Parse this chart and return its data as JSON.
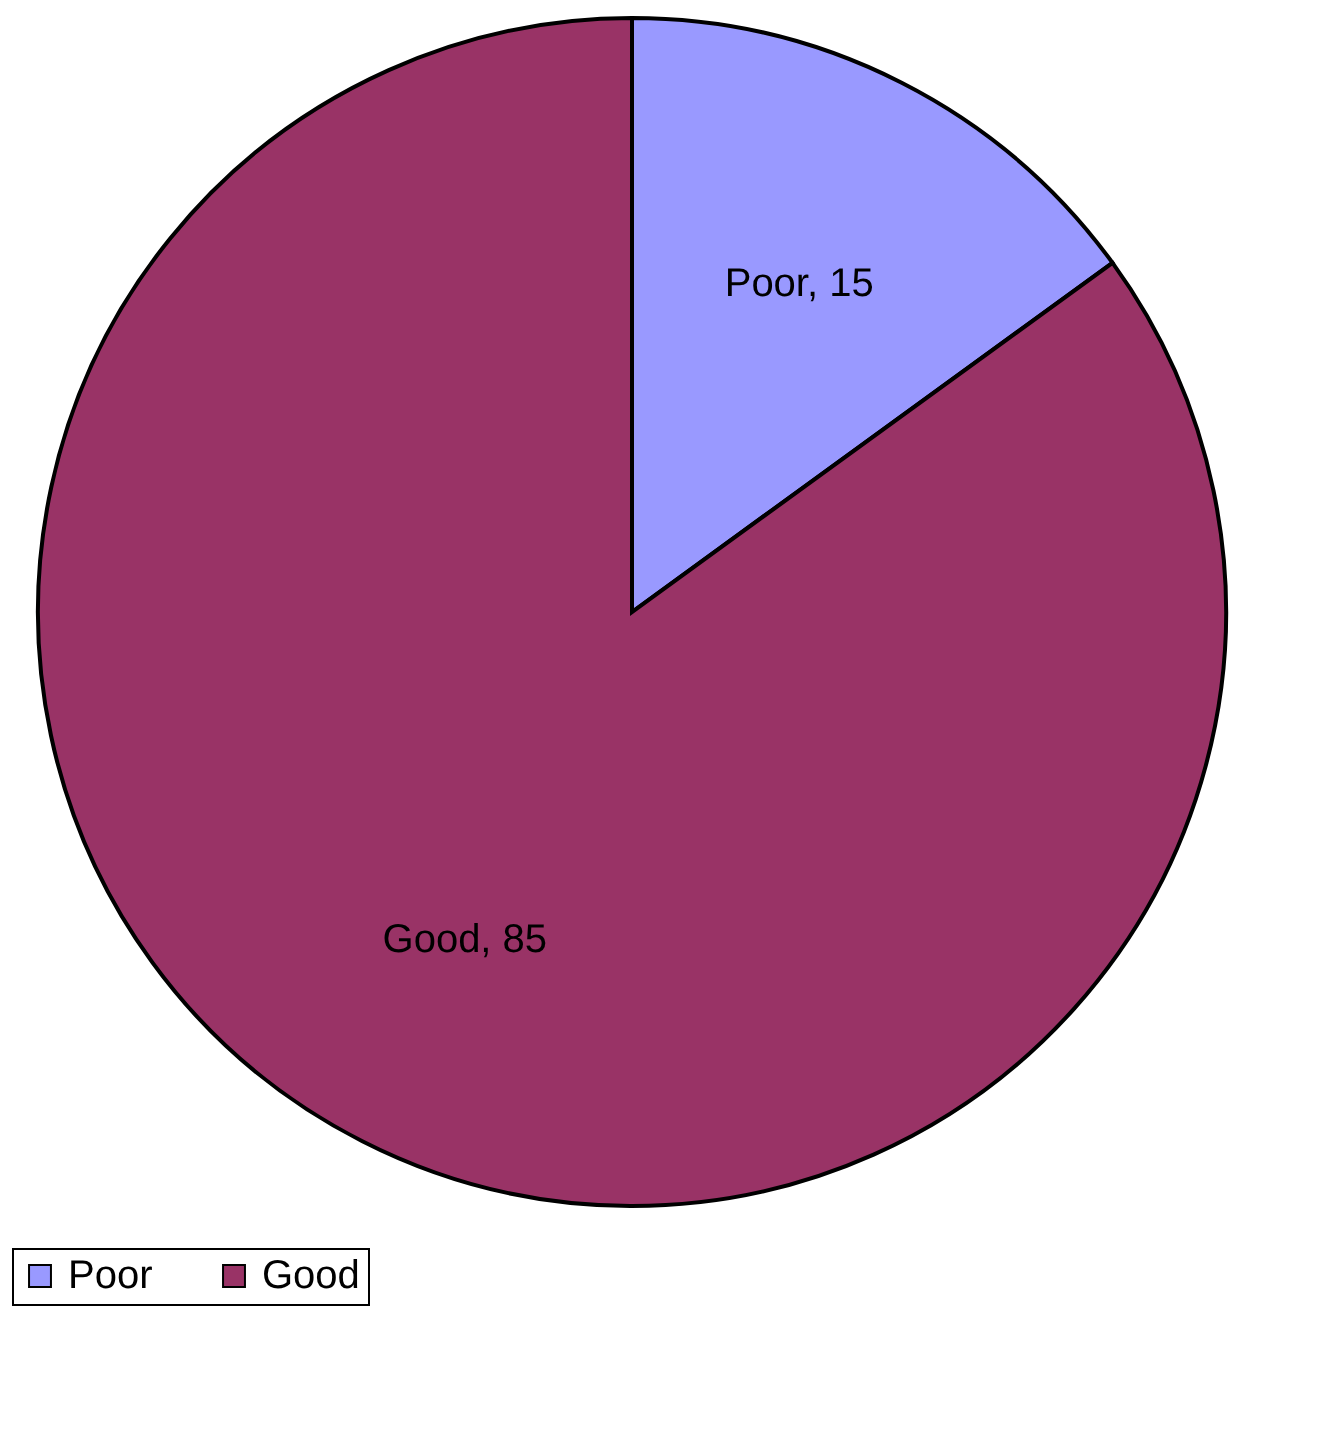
{
  "chart_data": {
    "type": "pie",
    "categories": [
      "Poor",
      "Good"
    ],
    "values": [
      15,
      85
    ],
    "colors": [
      "#9999ff",
      "#993366"
    ],
    "value_labels": [
      "Poor, 15",
      "Good, 85"
    ],
    "legend": "bottom"
  }
}
